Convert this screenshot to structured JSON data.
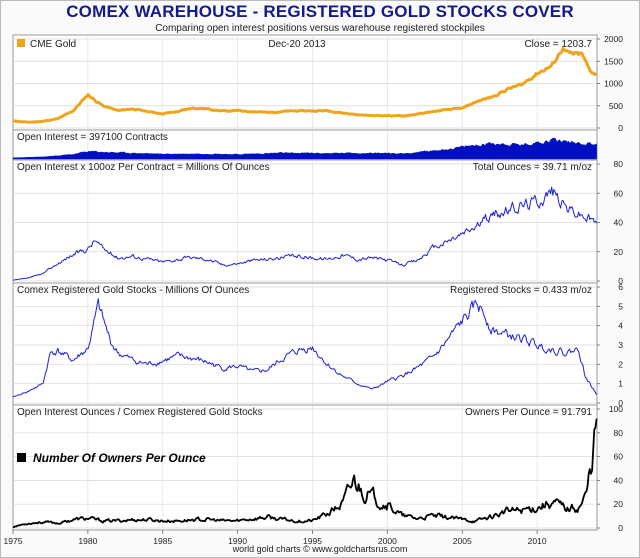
{
  "title": "COMEX WAREHOUSE - REGISTERED GOLD STOCKS COVER",
  "subtitle": "Comparing open interest positions versus warehouse registered stockpiles",
  "date": "Dec-20  2013",
  "footer": "world gold charts © www.goldchartsrus.com",
  "x_ticks": [
    "1975",
    "1980",
    "1985",
    "1990",
    "1995",
    "2000",
    "2005",
    "2010"
  ],
  "colors": {
    "gold": "#f0a41e",
    "oi_fill": "#0010c0",
    "blue_line": "#1f1fd6",
    "black_line": "#000000",
    "title": "#151a8a"
  },
  "chart_data": [
    {
      "type": "line",
      "panel": "CME Gold",
      "legend": "CME Gold",
      "label_right": "Close = 1203.7",
      "ylim": [
        0,
        2000
      ],
      "y_ticks": [
        "0",
        "500",
        "1000",
        "1500",
        "2000"
      ],
      "x": [
        1975,
        1976,
        1977,
        1978,
        1979,
        1980.0,
        1980.5,
        1981,
        1982,
        1983,
        1984,
        1985,
        1986,
        1987,
        1988,
        1989,
        1990,
        1991,
        1992,
        1993,
        1994,
        1995,
        1996,
        1997,
        1998,
        1999,
        2000,
        2001,
        2002,
        2003,
        2004,
        2005,
        2006,
        2007,
        2008,
        2009,
        2010,
        2011.0,
        2011.7,
        2012,
        2012.5,
        2013.0,
        2013.5,
        2013.97
      ],
      "values": [
        160,
        130,
        150,
        210,
        380,
        750,
        620,
        500,
        390,
        430,
        370,
        320,
        370,
        450,
        430,
        380,
        390,
        370,
        350,
        370,
        385,
        385,
        390,
        340,
        295,
        280,
        280,
        270,
        310,
        365,
        410,
        440,
        600,
        700,
        870,
        980,
        1230,
        1400,
        1800,
        1680,
        1650,
        1650,
        1300,
        1203.7
      ]
    },
    {
      "type": "area",
      "panel": "Open Interest",
      "label_left": "Open Interest = 397100 Contracts",
      "x": [
        1975,
        1977,
        1979,
        1980,
        1982,
        1985,
        1988,
        1990,
        1993,
        1996,
        1999,
        2001,
        2003,
        2005,
        2007,
        2009,
        2011,
        2012,
        2013,
        2013.97
      ],
      "values": [
        5000,
        30000,
        100000,
        180000,
        150000,
        110000,
        120000,
        100000,
        140000,
        130000,
        140000,
        120000,
        200000,
        300000,
        420000,
        360000,
        520000,
        460000,
        420000,
        397100
      ]
    },
    {
      "type": "line",
      "panel": "Open Interest x 100oz",
      "label_left": "Open Interest x 100oz Per Contract = Millions Of Ounces",
      "label_right": "Total Ounces = 39.71 m/oz",
      "ylim": [
        0,
        80
      ],
      "y_ticks": [
        "0",
        "20",
        "40",
        "60",
        "80"
      ],
      "x": [
        1975,
        1976,
        1977,
        1978,
        1979,
        1980,
        1980.5,
        1981,
        1982,
        1983,
        1984,
        1985,
        1986,
        1987,
        1988,
        1989,
        1990,
        1991,
        1992,
        1993,
        1994,
        1995,
        1996,
        1997,
        1998,
        1999,
        2000,
        2001,
        2002,
        2003,
        2004,
        2005,
        2006,
        2007,
        2008,
        2009,
        2010,
        2011,
        2012,
        2013,
        2013.97
      ],
      "values": [
        0.5,
        2,
        5,
        12,
        18,
        22,
        28,
        22,
        16,
        17,
        15,
        13,
        15,
        16,
        15,
        11,
        12,
        14,
        15,
        16,
        17,
        16,
        15,
        18,
        15,
        16,
        14,
        11,
        14,
        22,
        27,
        32,
        38,
        45,
        48,
        52,
        55,
        62,
        50,
        45,
        39.71
      ]
    },
    {
      "type": "line",
      "panel": "Comex Registered Gold Stocks",
      "label_left": "Comex Registered Gold Stocks  - Millions Of Ounces",
      "label_right": "Registered Stocks = 0.433 m/oz",
      "ylim": [
        0,
        6
      ],
      "y_ticks": [
        "0",
        "1",
        "2",
        "3",
        "4",
        "5",
        "6"
      ],
      "x": [
        1975,
        1976,
        1977,
        1977.5,
        1978,
        1979,
        1980,
        1980.7,
        1981.5,
        1982,
        1983,
        1984,
        1985,
        1986,
        1987,
        1988,
        1989,
        1990,
        1991,
        1992,
        1993,
        1994,
        1995,
        1996,
        1997,
        1998,
        1999,
        2000,
        2001,
        2002,
        2003,
        2004,
        2005,
        2006,
        2006.5,
        2007,
        2008,
        2009,
        2010,
        2011,
        2012,
        2012.8,
        2013.2,
        2013.97
      ],
      "values": [
        0.3,
        0.6,
        1.0,
        2.6,
        2.7,
        2.2,
        2.8,
        5.0,
        3.2,
        2.6,
        2.2,
        2.0,
        2.2,
        2.4,
        2.3,
        2.1,
        1.8,
        1.9,
        1.6,
        1.7,
        2.3,
        2.7,
        2.9,
        2.0,
        1.4,
        1.0,
        0.7,
        1.1,
        1.4,
        1.8,
        2.3,
        3.2,
        4.2,
        5.1,
        4.6,
        3.8,
        3.5,
        3.3,
        3.0,
        2.8,
        2.6,
        2.8,
        1.4,
        0.433
      ]
    },
    {
      "type": "line",
      "panel": "Owners Per Ounce",
      "label_left": "Open Interest Ounces / Comex Registered Gold Stocks",
      "label_right": "Owners Per Ounce = 91.791",
      "legend": "Number Of Owners Per Ounce",
      "ylim": [
        0,
        100
      ],
      "y_ticks": [
        "0",
        "20",
        "40",
        "60",
        "80",
        "100"
      ],
      "x": [
        1975,
        1976,
        1977,
        1978,
        1979,
        1980,
        1981,
        1982,
        1983,
        1984,
        1985,
        1986,
        1987,
        1988,
        1989,
        1990,
        1991,
        1992,
        1993,
        1994,
        1995,
        1996,
        1997,
        1997.8,
        1998.5,
        1999,
        2000,
        2001,
        2002,
        2003,
        2004,
        2005,
        2006,
        2007,
        2008,
        2009,
        2010,
        2011,
        2012,
        2012.8,
        2013.3,
        2013.7,
        2013.97
      ],
      "values": [
        1,
        4,
        5,
        4,
        7,
        8,
        6,
        6,
        7,
        7,
        6,
        6,
        7,
        7,
        6,
        6,
        8,
        9,
        7,
        6,
        6,
        12,
        20,
        40,
        30,
        26,
        20,
        10,
        8,
        10,
        9,
        7,
        6,
        10,
        14,
        15,
        18,
        22,
        16,
        18,
        28,
        62,
        91.791
      ]
    }
  ]
}
